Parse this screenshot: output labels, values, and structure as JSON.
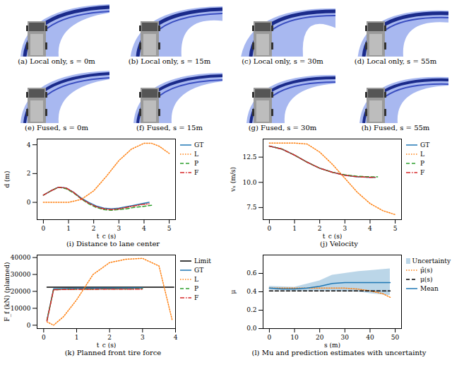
{
  "images": [
    {
      "caption": "(a) Local only, s = 0m"
    },
    {
      "caption": "(b) Local only, s = 15m"
    },
    {
      "caption": "(c) Local only, s = 30m"
    },
    {
      "caption": "(d) Local only, s = 55m"
    },
    {
      "caption": "(e) Fused, s = 0m"
    },
    {
      "caption": "(f) Fused, s = 15m"
    },
    {
      "caption": "(g) Fused, s = 30m"
    },
    {
      "caption": "(h) Fused, s = 55m"
    }
  ],
  "chart_data": [
    {
      "type": "line",
      "title": "(i) Distance to lane center",
      "x_label": "t_c (s)",
      "y_label": "d (m)",
      "xlim": [
        -0.25,
        5.25
      ],
      "xticks": [
        0,
        1,
        2,
        3,
        4,
        5
      ],
      "ylim": [
        -1.2,
        4.4
      ],
      "yticks": [
        0,
        2,
        4
      ],
      "legend": "right",
      "series": [
        {
          "name": "GT",
          "color": "#1f77b4",
          "line_style": "solid",
          "x": [
            0,
            0.3,
            0.6,
            0.9,
            1.2,
            1.5,
            1.8,
            2.1,
            2.4,
            2.7,
            3.0,
            3.3,
            3.6,
            3.9,
            4.2
          ],
          "values": [
            0.5,
            0.8,
            1.05,
            1.0,
            0.7,
            0.3,
            0.0,
            -0.25,
            -0.4,
            -0.45,
            -0.4,
            -0.3,
            -0.2,
            -0.1,
            0.0
          ]
        },
        {
          "name": "L",
          "color": "#ff7f0e",
          "line_style": "dotted",
          "x": [
            0,
            0.5,
            1.0,
            1.5,
            2.0,
            2.5,
            3.0,
            3.5,
            4.0,
            4.3,
            4.6,
            5.0
          ],
          "values": [
            0.0,
            0.0,
            0.0,
            0.2,
            0.8,
            1.8,
            2.9,
            3.7,
            4.1,
            4.1,
            3.9,
            3.4
          ]
        },
        {
          "name": "P",
          "color": "#2ca02c",
          "line_style": "dashed",
          "x": [
            0,
            0.3,
            0.6,
            0.9,
            1.2,
            1.5,
            1.8,
            2.1,
            2.4,
            2.7,
            3.0,
            3.3,
            3.6,
            3.9,
            4.3
          ],
          "values": [
            0.5,
            0.8,
            1.05,
            0.95,
            0.65,
            0.25,
            -0.1,
            -0.35,
            -0.5,
            -0.55,
            -0.5,
            -0.45,
            -0.35,
            -0.3,
            -0.2
          ]
        },
        {
          "name": "F",
          "color": "#d62728",
          "line_style": "dashdot",
          "x": [
            0,
            0.3,
            0.6,
            0.9,
            1.2,
            1.5,
            1.8,
            2.1,
            2.4,
            2.7,
            3.0,
            3.3,
            3.6,
            3.9,
            4.2
          ],
          "values": [
            0.5,
            0.8,
            1.05,
            1.0,
            0.7,
            0.25,
            -0.05,
            -0.3,
            -0.45,
            -0.5,
            -0.45,
            -0.35,
            -0.25,
            -0.15,
            -0.1
          ]
        }
      ]
    },
    {
      "type": "line",
      "title": "(j) Velocity",
      "x_label": "t_c (s)",
      "y_label": "vₓ (m/s)",
      "xlim": [
        -0.25,
        5.25
      ],
      "xticks": [
        0,
        1,
        2,
        3,
        4,
        5
      ],
      "ylim": [
        6.3,
        14.3
      ],
      "yticks": [
        7.5,
        {
          "value": 10,
          "label": "10.0"
        },
        12.5
      ],
      "legend": "right",
      "series": [
        {
          "name": "GT",
          "color": "#1f77b4",
          "line_style": "solid",
          "x": [
            0,
            0.5,
            1.0,
            1.5,
            2.0,
            2.5,
            3.0,
            3.5,
            4.0,
            4.2
          ],
          "values": [
            13.6,
            13.3,
            12.7,
            12.0,
            11.4,
            11.0,
            10.7,
            10.55,
            10.5,
            10.5
          ]
        },
        {
          "name": "L",
          "color": "#ff7f0e",
          "line_style": "dotted",
          "x": [
            0,
            0.5,
            1.0,
            1.5,
            2.0,
            2.5,
            3.0,
            3.5,
            4.0,
            4.5,
            5.0
          ],
          "values": [
            13.9,
            13.9,
            13.9,
            13.8,
            13.0,
            11.8,
            10.4,
            9.0,
            7.9,
            7.2,
            6.8
          ]
        },
        {
          "name": "P",
          "color": "#2ca02c",
          "line_style": "dashed",
          "x": [
            0,
            0.5,
            1.0,
            1.5,
            2.0,
            2.5,
            3.0,
            3.5,
            4.0,
            4.3
          ],
          "values": [
            13.6,
            13.3,
            12.7,
            12.0,
            11.4,
            11.0,
            10.75,
            10.6,
            10.55,
            10.55
          ]
        },
        {
          "name": "F",
          "color": "#d62728",
          "line_style": "dashdot",
          "x": [
            0,
            0.5,
            1.0,
            1.5,
            2.0,
            2.5,
            3.0,
            3.5,
            4.0,
            4.2
          ],
          "values": [
            13.6,
            13.3,
            12.7,
            12.0,
            11.4,
            11.0,
            10.7,
            10.55,
            10.5,
            10.5
          ]
        }
      ]
    },
    {
      "type": "line",
      "title": "(k) Planned front tire force",
      "x_label": "t_c (s)",
      "y_label": "F_f (kN) (planned)",
      "xlim": [
        -0.2,
        4.0
      ],
      "xticks": [
        0,
        1,
        2,
        3,
        4
      ],
      "ylim": [
        -2000,
        41500
      ],
      "yticks": [
        0,
        10000,
        20000,
        30000,
        40000
      ],
      "legend": "right",
      "series": [
        {
          "name": "Limit",
          "color": "#000000",
          "line_style": "solid",
          "x": [
            0.1,
            3.95
          ],
          "values": [
            22500,
            22500
          ]
        },
        {
          "name": "GT",
          "color": "#1f77b4",
          "line_style": "solid",
          "x": [
            0.1,
            0.3,
            1.0,
            2.0,
            3.0
          ],
          "values": [
            3000,
            21500,
            21800,
            21900,
            22000
          ]
        },
        {
          "name": "L",
          "color": "#ff7f0e",
          "line_style": "dotted",
          "x": [
            0.1,
            0.3,
            0.6,
            1.0,
            1.5,
            2.0,
            2.5,
            3.0,
            3.5,
            3.9
          ],
          "values": [
            2000,
            0,
            5000,
            15000,
            30000,
            37000,
            39000,
            39500,
            35000,
            3000
          ]
        },
        {
          "name": "P",
          "color": "#2ca02c",
          "line_style": "dashed",
          "x": [
            0.1,
            0.3,
            1.0,
            2.0,
            3.0
          ],
          "values": [
            3000,
            21000,
            21300,
            21400,
            21500
          ]
        },
        {
          "name": "F",
          "color": "#d62728",
          "line_style": "dashdot",
          "x": [
            0.1,
            0.3,
            1.0,
            2.0,
            3.0
          ],
          "values": [
            2500,
            21000,
            21200,
            21300,
            21300
          ]
        }
      ]
    },
    {
      "type": "line",
      "title": "(l) Mu and prediction estimates with uncertainty",
      "x_label": "s (m)",
      "y_label": "μ",
      "xlim": [
        -2.5,
        52.5
      ],
      "xticks": [
        0,
        10,
        20,
        30,
        40,
        50
      ],
      "ylim": [
        0,
        0.8
      ],
      "yticks": [
        {
          "value": 0,
          "label": "0.0"
        },
        {
          "value": 0.2,
          "label": "0.2"
        },
        {
          "value": 0.4,
          "label": "0.4"
        },
        {
          "value": 0.6,
          "label": "0.6"
        }
      ],
      "legend": "right",
      "series": [
        {
          "name": "Uncertainty",
          "type": "band",
          "color": "#1f77b4",
          "x": [
            0,
            10,
            20,
            25,
            30,
            35,
            40,
            48
          ],
          "lower": [
            0.42,
            0.41,
            0.41,
            0.41,
            0.4,
            0.4,
            0.38,
            0.36
          ],
          "upper": [
            0.46,
            0.45,
            0.52,
            0.58,
            0.6,
            0.62,
            0.63,
            0.65
          ]
        },
        {
          "name": "μ̂(s)",
          "color": "#ff7f0e",
          "line_style": "dotted",
          "x": [
            0,
            10,
            20,
            30,
            35,
            40,
            45,
            48
          ],
          "values": [
            0.44,
            0.44,
            0.44,
            0.44,
            0.43,
            0.41,
            0.38,
            0.34
          ]
        },
        {
          "name": "μ(s)",
          "color": "#000000",
          "line_style": "dashed",
          "x": [
            0,
            48
          ],
          "values": [
            0.41,
            0.41
          ]
        },
        {
          "name": "Mean",
          "color": "#1f77b4",
          "line_style": "solid",
          "x": [
            0,
            5,
            10,
            15,
            20,
            25,
            30,
            35,
            40,
            45,
            48
          ],
          "values": [
            0.44,
            0.43,
            0.43,
            0.44,
            0.46,
            0.49,
            0.5,
            0.5,
            0.5,
            0.5,
            0.5
          ]
        }
      ]
    }
  ]
}
